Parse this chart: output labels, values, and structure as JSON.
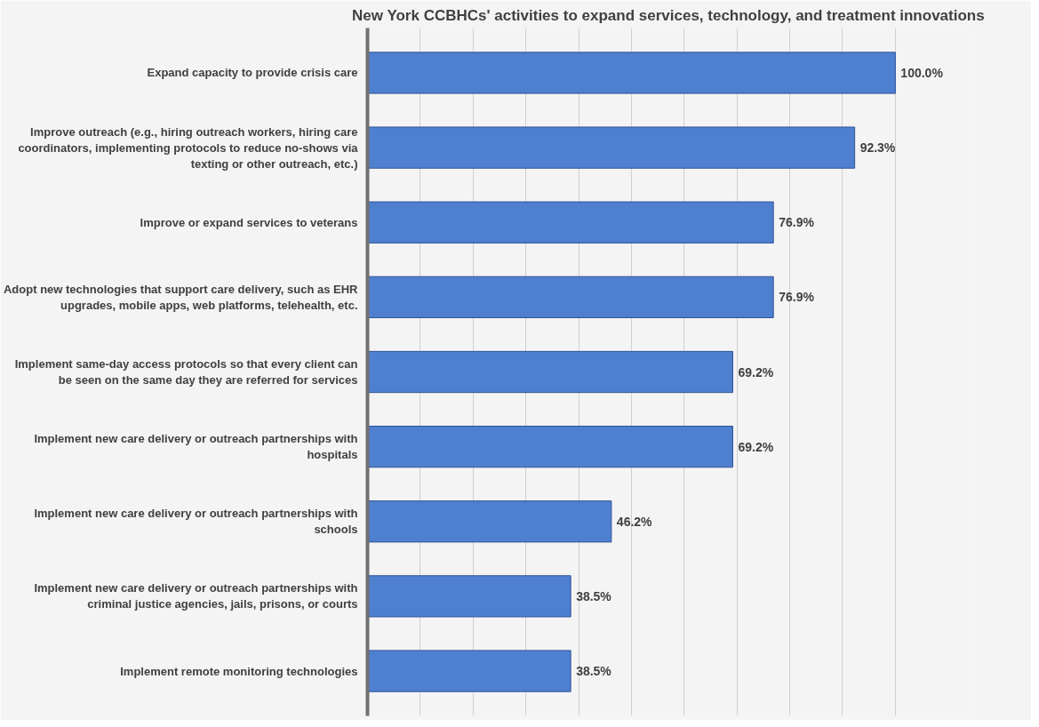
{
  "chart_data": {
    "type": "bar",
    "orientation": "horizontal",
    "title": "New York CCBHCs' activities to expand services, technology, and treatment innovations",
    "categories": [
      "Expand capacity to provide crisis care",
      "Improve outreach (e.g., hiring outreach workers, hiring care coordinators, implementing protocols to reduce no-shows via texting or other outreach, etc.)",
      "Improve or expand services to veterans",
      "Adopt new technologies that support care delivery, such as EHR upgrades, mobile apps, web platforms, telehealth, etc.",
      "Implement same-day access protocols so that every client can be seen on the same day they are referred for services",
      "Implement new care delivery or outreach partnerships with hospitals",
      "Implement new care delivery or outreach partnerships with schools",
      "Implement new care delivery or outreach partnerships with criminal justice agencies, jails, prisons, or courts",
      "Implement remote monitoring technologies"
    ],
    "values": [
      100.0,
      92.3,
      76.9,
      76.9,
      69.2,
      69.2,
      46.2,
      38.5,
      38.5
    ],
    "value_labels": [
      "100.0%",
      "92.3%",
      "76.9%",
      "76.9%",
      "69.2%",
      "69.2%",
      "46.2%",
      "38.5%",
      "38.5%"
    ],
    "color": "#4f7fcf",
    "xlim": [
      0,
      114
    ],
    "xticks": [
      {
        "value": 0,
        "label": null
      },
      {
        "value": 10,
        "label": null
      },
      {
        "value": 20,
        "label": null
      },
      {
        "value": 30,
        "label": null
      },
      {
        "value": 40,
        "label": null
      },
      {
        "value": 50,
        "label": null
      },
      {
        "value": 60,
        "label": null
      },
      {
        "value": 70,
        "label": null
      },
      {
        "value": 80,
        "label": null
      },
      {
        "value": 90,
        "label": null
      },
      {
        "value": 100,
        "label": null
      }
    ],
    "grid": "x",
    "tick_labels": "y"
  }
}
